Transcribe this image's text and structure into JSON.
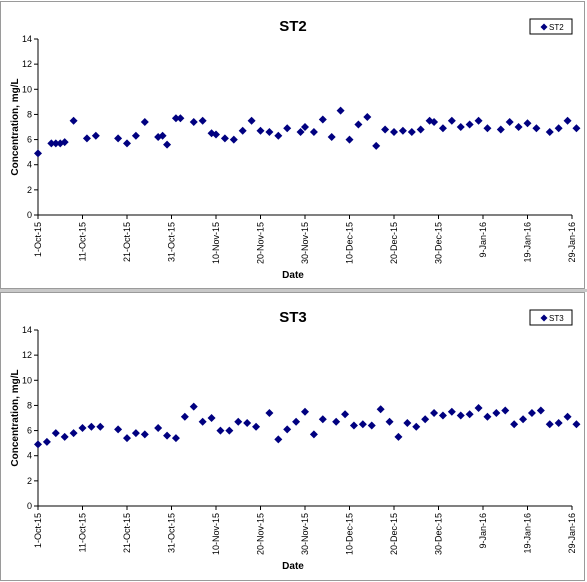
{
  "chart_data": [
    {
      "type": "scatter",
      "title": "ST2",
      "xlabel": "Date",
      "ylabel": "Concentration, mg/L",
      "ylim": [
        0,
        14
      ],
      "y_ticks": [
        "0",
        "2",
        "4",
        "6",
        "8",
        "10",
        "12",
        "14"
      ],
      "xlim": [
        "2015-10-01",
        "2016-01-29"
      ],
      "x_ticks": [
        "1-Oct-15",
        "11-Oct-15",
        "21-Oct-15",
        "31-Oct-15",
        "10-Nov-15",
        "20-Nov-15",
        "30-Nov-15",
        "10-Dec-15",
        "20-Dec-15",
        "30-Dec-15",
        "9-Jan-16",
        "19-Jan-16",
        "29-Jan-16"
      ],
      "x_tick_dates": [
        "2015-10-01",
        "2015-10-11",
        "2015-10-21",
        "2015-10-31",
        "2015-11-10",
        "2015-11-20",
        "2015-11-30",
        "2015-12-10",
        "2015-12-20",
        "2015-12-30",
        "2016-01-09",
        "2016-01-19",
        "2016-01-29"
      ],
      "legend": "top-right",
      "series": [
        {
          "name": "ST2",
          "color": "#000080",
          "marker": "diamond",
          "x": [
            "2015-10-01",
            "2015-10-04",
            "2015-10-05",
            "2015-10-06",
            "2015-10-07",
            "2015-10-09",
            "2015-10-12",
            "2015-10-14",
            "2015-10-19",
            "2015-10-21",
            "2015-10-23",
            "2015-10-25",
            "2015-10-28",
            "2015-10-29",
            "2015-10-30",
            "2015-11-01",
            "2015-11-02",
            "2015-11-05",
            "2015-11-07",
            "2015-11-09",
            "2015-11-10",
            "2015-11-12",
            "2015-11-14",
            "2015-11-16",
            "2015-11-18",
            "2015-11-20",
            "2015-11-22",
            "2015-11-24",
            "2015-11-26",
            "2015-11-29",
            "2015-11-30",
            "2015-12-02",
            "2015-12-04",
            "2015-12-06",
            "2015-12-08",
            "2015-12-10",
            "2015-12-12",
            "2015-12-14",
            "2015-12-16",
            "2015-12-18",
            "2015-12-20",
            "2015-12-22",
            "2015-12-24",
            "2015-12-26",
            "2015-12-28",
            "2015-12-29",
            "2015-12-31",
            "2016-01-02",
            "2016-01-04",
            "2016-01-06",
            "2016-01-08",
            "2016-01-10",
            "2016-01-13",
            "2016-01-15",
            "2016-01-17",
            "2016-01-19",
            "2016-01-21",
            "2016-01-24",
            "2016-01-26",
            "2016-01-28",
            "2016-01-30"
          ],
          "y": [
            4.9,
            5.7,
            5.7,
            5.7,
            5.8,
            7.5,
            6.1,
            6.3,
            6.1,
            5.7,
            6.3,
            7.4,
            6.2,
            6.3,
            5.6,
            7.7,
            7.7,
            7.4,
            7.5,
            6.5,
            6.4,
            6.1,
            6.0,
            6.7,
            7.5,
            6.7,
            6.6,
            6.3,
            6.9,
            6.6,
            7.0,
            6.6,
            7.6,
            6.2,
            8.3,
            6.0,
            7.2,
            7.8,
            5.5,
            6.8,
            6.6,
            6.7,
            6.6,
            6.8,
            7.5,
            7.4,
            6.9,
            7.5,
            7.0,
            7.2,
            7.5,
            6.9,
            6.8,
            7.4,
            7.0,
            7.3,
            6.9,
            6.6,
            6.9,
            7.5,
            6.9
          ]
        }
      ]
    },
    {
      "type": "scatter",
      "title": "ST3",
      "xlabel": "Date",
      "ylabel": "Concentration, mg/L",
      "ylim": [
        0,
        14
      ],
      "y_ticks": [
        "0",
        "2",
        "4",
        "6",
        "8",
        "10",
        "12",
        "14"
      ],
      "xlim": [
        "2015-10-01",
        "2016-01-29"
      ],
      "x_ticks": [
        "1-Oct-15",
        "11-Oct-15",
        "21-Oct-15",
        "31-Oct-15",
        "10-Nov-15",
        "20-Nov-15",
        "30-Nov-15",
        "10-Dec-15",
        "20-Dec-15",
        "30-Dec-15",
        "9-Jan-16",
        "19-Jan-16",
        "29-Jan-16"
      ],
      "x_tick_dates": [
        "2015-10-01",
        "2015-10-11",
        "2015-10-21",
        "2015-10-31",
        "2015-11-10",
        "2015-11-20",
        "2015-11-30",
        "2015-12-10",
        "2015-12-20",
        "2015-12-30",
        "2016-01-09",
        "2016-01-19",
        "2016-01-29"
      ],
      "legend": "top-right",
      "series": [
        {
          "name": "ST3",
          "color": "#000080",
          "marker": "diamond",
          "x": [
            "2015-10-01",
            "2015-10-03",
            "2015-10-05",
            "2015-10-07",
            "2015-10-09",
            "2015-10-11",
            "2015-10-13",
            "2015-10-15",
            "2015-10-19",
            "2015-10-21",
            "2015-10-23",
            "2015-10-25",
            "2015-10-28",
            "2015-10-30",
            "2015-11-01",
            "2015-11-03",
            "2015-11-05",
            "2015-11-07",
            "2015-11-09",
            "2015-11-11",
            "2015-11-13",
            "2015-11-15",
            "2015-11-17",
            "2015-11-19",
            "2015-11-22",
            "2015-11-24",
            "2015-11-26",
            "2015-11-28",
            "2015-11-30",
            "2015-12-02",
            "2015-12-04",
            "2015-12-07",
            "2015-12-09",
            "2015-12-11",
            "2015-12-13",
            "2015-12-15",
            "2015-12-17",
            "2015-12-19",
            "2015-12-21",
            "2015-12-23",
            "2015-12-25",
            "2015-12-27",
            "2015-12-29",
            "2015-12-31",
            "2016-01-02",
            "2016-01-04",
            "2016-01-06",
            "2016-01-08",
            "2016-01-10",
            "2016-01-12",
            "2016-01-14",
            "2016-01-16",
            "2016-01-18",
            "2016-01-20",
            "2016-01-22",
            "2016-01-24",
            "2016-01-26",
            "2016-01-28",
            "2016-01-30"
          ],
          "y": [
            4.9,
            5.1,
            5.8,
            5.5,
            5.8,
            6.2,
            6.3,
            6.3,
            6.1,
            5.4,
            5.8,
            5.7,
            6.2,
            5.6,
            5.4,
            7.1,
            7.9,
            6.7,
            7.0,
            6.0,
            6.0,
            6.7,
            6.6,
            6.3,
            7.4,
            5.3,
            6.1,
            6.7,
            7.5,
            5.7,
            6.9,
            6.7,
            7.3,
            6.4,
            6.5,
            6.4,
            7.7,
            6.7,
            5.5,
            6.6,
            6.3,
            6.9,
            7.4,
            7.2,
            7.5,
            7.2,
            7.3,
            7.8,
            7.1,
            7.4,
            7.6,
            6.5,
            6.9,
            7.4,
            7.6,
            6.5,
            6.6,
            7.1,
            6.5
          ]
        }
      ]
    }
  ]
}
